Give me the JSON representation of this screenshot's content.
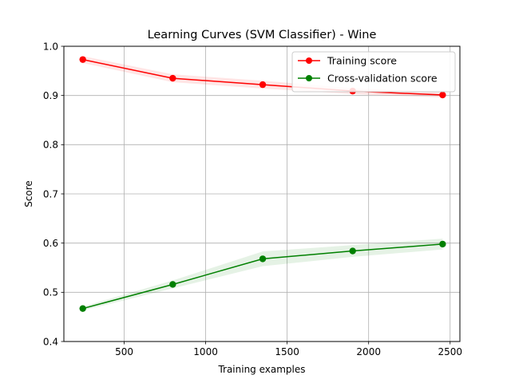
{
  "chart_data": {
    "type": "line",
    "title": "Learning Curves (SVM Classifier) - Wine",
    "xlabel": "Training examples",
    "ylabel": "Score",
    "xlim": [
      130,
      2560
    ],
    "ylim": [
      0.4,
      1.0
    ],
    "xticks": [
      500,
      1000,
      1500,
      2000,
      2500
    ],
    "yticks": [
      0.4,
      0.5,
      0.6,
      0.7,
      0.8,
      0.9,
      1.0
    ],
    "xtick_labels": [
      "500",
      "1000",
      "1500",
      "2000",
      "2500"
    ],
    "ytick_labels": [
      "0.4",
      "0.5",
      "0.6",
      "0.7",
      "0.8",
      "0.9",
      "1.0"
    ],
    "grid": true,
    "legend_position": "top-right",
    "x": [
      246,
      798,
      1350,
      1902,
      2454
    ],
    "series": [
      {
        "name": "Training score",
        "color": "#ff0000",
        "marker": "circle",
        "values": [
          0.973,
          0.935,
          0.922,
          0.909,
          0.901
        ],
        "band": [
          [
            0.966,
            0.98
          ],
          [
            0.927,
            0.943
          ],
          [
            0.914,
            0.93
          ],
          [
            0.903,
            0.915
          ],
          [
            0.896,
            0.906
          ]
        ]
      },
      {
        "name": "Cross-validation score",
        "color": "#008000",
        "marker": "circle",
        "values": [
          0.467,
          0.516,
          0.568,
          0.584,
          0.598
        ],
        "band": [
          [
            0.463,
            0.471
          ],
          [
            0.508,
            0.524
          ],
          [
            0.553,
            0.583
          ],
          [
            0.572,
            0.596
          ],
          [
            0.587,
            0.609
          ]
        ]
      }
    ]
  }
}
